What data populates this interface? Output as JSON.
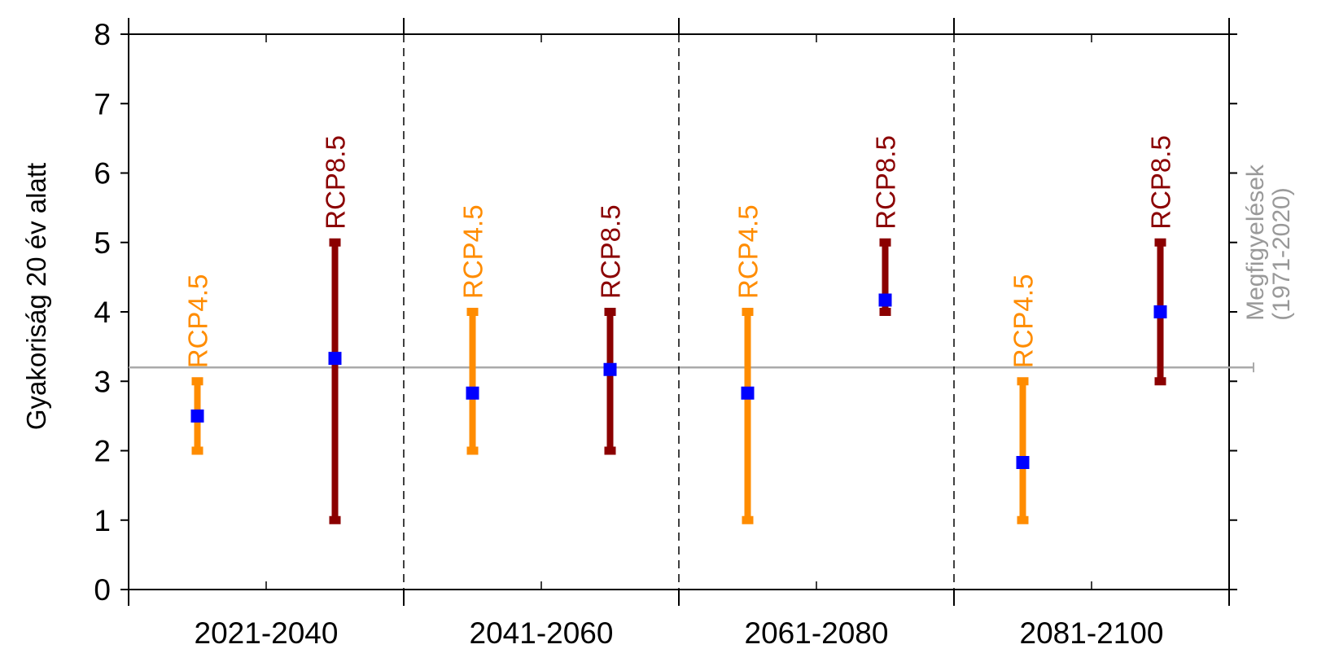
{
  "chart_data": {
    "type": "errorbar",
    "ylabel": "Gyakoriság 20 év alatt",
    "ylim": [
      0,
      8
    ],
    "yticks": [
      0,
      1,
      2,
      3,
      4,
      5,
      6,
      7,
      8
    ],
    "categories": [
      "2021-2040",
      "2041-2060",
      "2061-2080",
      "2081-2100"
    ],
    "series": [
      {
        "name": "RCP4.5",
        "color": "#ff8c00",
        "points": [
          {
            "category": "2021-2040",
            "min": 2,
            "max": 3,
            "mean": 2.5
          },
          {
            "category": "2041-2060",
            "min": 2,
            "max": 4,
            "mean": 2.83
          },
          {
            "category": "2061-2080",
            "min": 1,
            "max": 4,
            "mean": 2.83
          },
          {
            "category": "2081-2100",
            "min": 1,
            "max": 3,
            "mean": 1.83
          }
        ]
      },
      {
        "name": "RCP8.5",
        "color": "#8b0000",
        "points": [
          {
            "category": "2021-2040",
            "min": 1,
            "max": 5,
            "mean": 3.33
          },
          {
            "category": "2041-2060",
            "min": 2,
            "max": 4,
            "mean": 3.17
          },
          {
            "category": "2061-2080",
            "min": 4,
            "max": 5,
            "mean": 4.17
          },
          {
            "category": "2081-2100",
            "min": 3,
            "max": 5,
            "mean": 4.0
          }
        ]
      }
    ],
    "mean_marker_color": "#0000ff",
    "reference_line": {
      "value": 3.2,
      "color": "#aaaaaa",
      "label_line1": "Megfigyelések",
      "label_line2": "(1971-2020)"
    },
    "grid": false,
    "period_separators": "dashed"
  }
}
